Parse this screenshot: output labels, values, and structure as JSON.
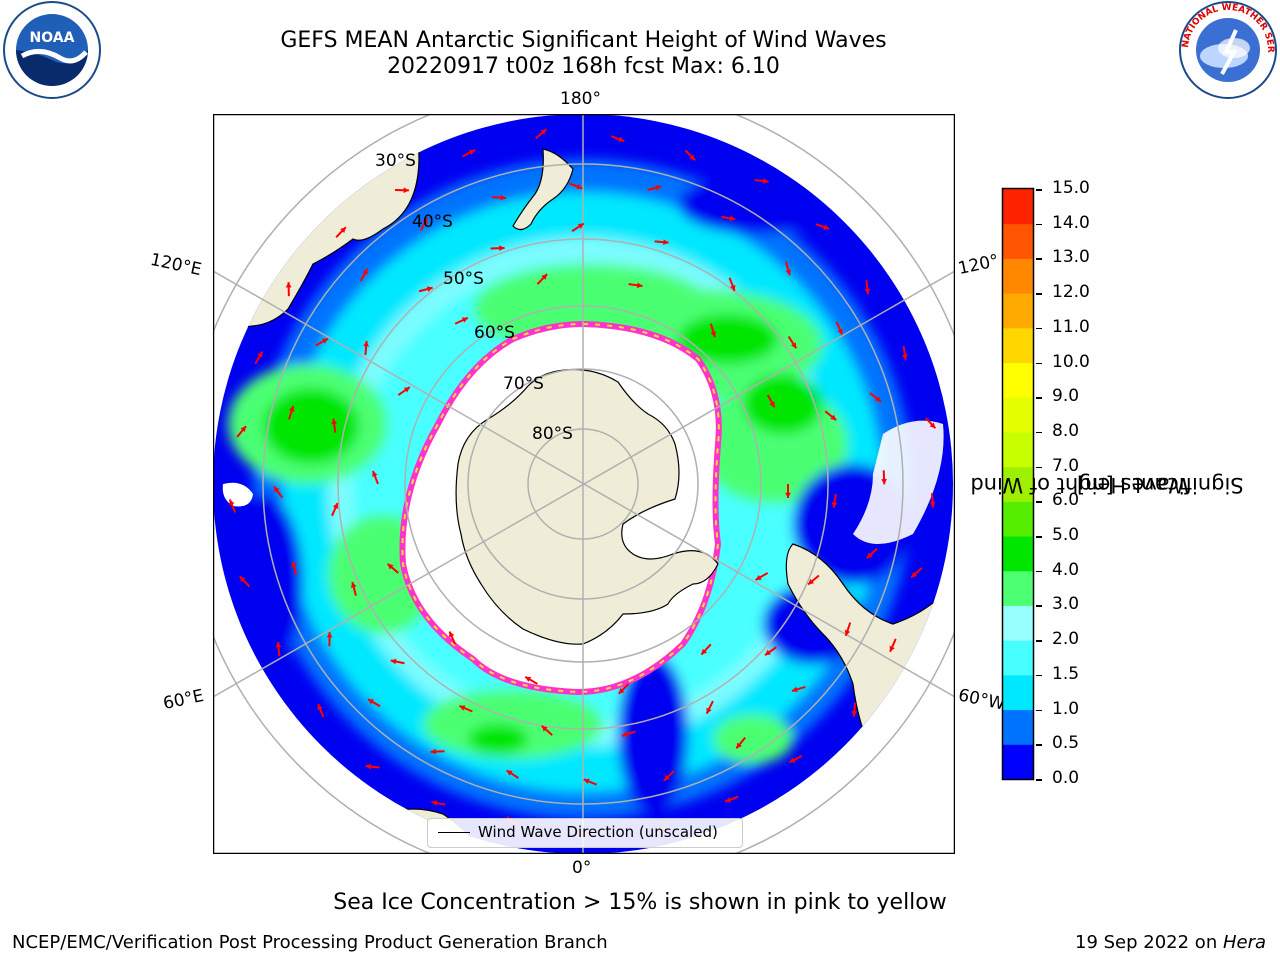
{
  "header": {
    "title_line1": "GEFS MEAN Antarctic Significant Height of Wind Waves",
    "title_line2": "20220917 t00z 168h fcst   Max: 6.10"
  },
  "logos": {
    "noaa_text": "NOAA",
    "nws_text": "NATIONAL WEATHER SERVICE"
  },
  "map": {
    "longitude_labels": [
      "180°",
      "120°E",
      "120°",
      "60°E",
      "60°W",
      "0°"
    ],
    "latitude_labels": [
      "30°S",
      "40°S",
      "50°S",
      "60°S",
      "70°S",
      "80°S"
    ],
    "legend_label": "Wind Wave Direction (unscaled)",
    "colors": {
      "land": "#efedd8",
      "ice_edge": "#ff33cc",
      "arrow": "#ff0000",
      "grid": "#b0b0b0"
    }
  },
  "colorbar": {
    "label_line1": "Significant Height of Wind",
    "label_line2": "Waves [m]",
    "ticks": [
      "15.0",
      "14.0",
      "13.0",
      "12.0",
      "11.0",
      "10.0",
      "9.0",
      "8.0",
      "7.0",
      "6.0",
      "5.0",
      "4.0",
      "3.0",
      "2.0",
      "1.5",
      "1.0",
      "0.5",
      "0.0"
    ],
    "colors": [
      "#0000ff",
      "#0073ff",
      "#00e8ff",
      "#48ffff",
      "#99ffff",
      "#4cff73",
      "#00e600",
      "#55ee00",
      "#9ef000",
      "#c8ff00",
      "#e6ff00",
      "#ffff00",
      "#ffd700",
      "#ffaa00",
      "#ff8800",
      "#ff5500",
      "#ff2200",
      "#ff0000"
    ]
  },
  "footer": {
    "sea_ice_note": "Sea Ice Concentration > 15% is shown in pink to yellow",
    "left": "NCEP/EMC/Verification Post Processing Product Generation Branch",
    "right_date": "19 Sep 2022 on ",
    "right_machine": "Hera"
  }
}
